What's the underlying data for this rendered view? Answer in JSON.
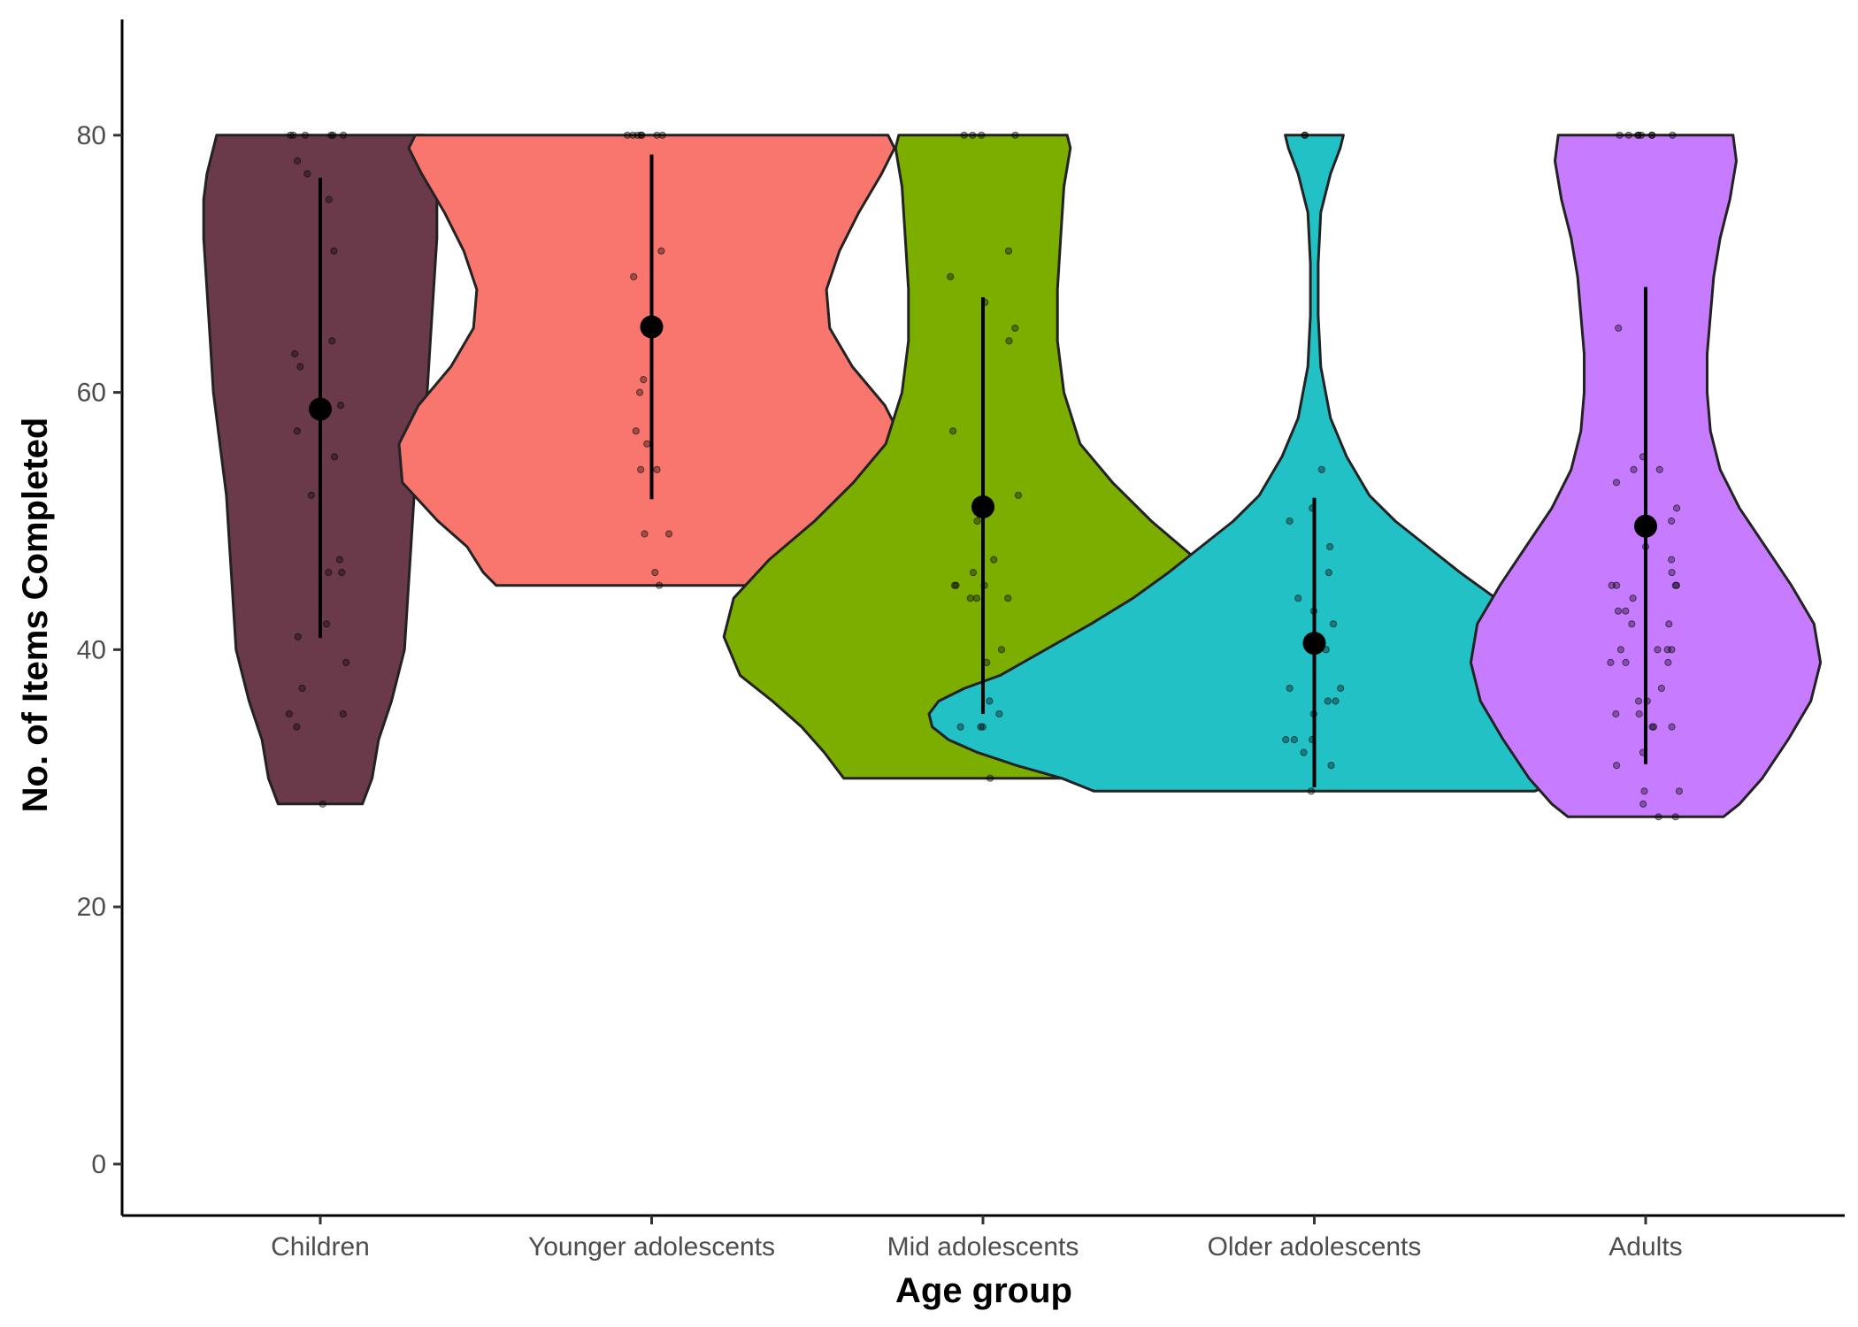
{
  "chart_data": {
    "type": "violin",
    "xlabel": "Age group",
    "ylabel": "No. of Items Completed",
    "ylim": [
      -4,
      89
    ],
    "yticks": [
      0,
      20,
      40,
      60,
      80
    ],
    "grid": false,
    "legend": "none",
    "categories": [
      "Children",
      "Younger adolescents",
      "Mid adolescents",
      "Older adolescents",
      "Adults"
    ],
    "groups": [
      {
        "name": "Children",
        "color": "#6b3a4a",
        "mean": 58.7,
        "interval": [
          40.9,
          76.7
        ],
        "profile": [
          [
            28,
            0.13
          ],
          [
            30,
            0.16
          ],
          [
            33,
            0.18
          ],
          [
            36,
            0.22
          ],
          [
            40,
            0.26
          ],
          [
            44,
            0.27
          ],
          [
            48,
            0.28
          ],
          [
            52,
            0.29
          ],
          [
            56,
            0.31
          ],
          [
            60,
            0.33
          ],
          [
            64,
            0.34
          ],
          [
            68,
            0.35
          ],
          [
            72,
            0.36
          ],
          [
            75,
            0.36
          ],
          [
            77,
            0.35
          ],
          [
            79,
            0.33
          ],
          [
            80,
            0.32
          ]
        ],
        "points": [
          80,
          80,
          80,
          80,
          80,
          80,
          78,
          77,
          75,
          71,
          64,
          63,
          62,
          59,
          57,
          55,
          52,
          47,
          46,
          46,
          42,
          41,
          39,
          37,
          35,
          35,
          34,
          28
        ]
      },
      {
        "name": "Younger adolescents",
        "color": "#f8766d",
        "mean": 65.1,
        "interval": [
          51.7,
          78.5
        ],
        "profile": [
          [
            45,
            0.48
          ],
          [
            46,
            0.52
          ],
          [
            48,
            0.57
          ],
          [
            50,
            0.66
          ],
          [
            53,
            0.77
          ],
          [
            56,
            0.78
          ],
          [
            59,
            0.72
          ],
          [
            62,
            0.62
          ],
          [
            65,
            0.55
          ],
          [
            68,
            0.54
          ],
          [
            71,
            0.58
          ],
          [
            74,
            0.64
          ],
          [
            77,
            0.71
          ],
          [
            79,
            0.75
          ],
          [
            80,
            0.73
          ]
        ],
        "points": [
          80,
          80,
          80,
          80,
          80,
          80,
          80,
          71,
          69,
          61,
          60,
          57,
          56,
          54,
          54,
          49,
          49,
          46,
          45
        ]
      },
      {
        "name": "Mid adolescents",
        "color": "#7cae00",
        "mean": 51.1,
        "interval": [
          35.0,
          67.4
        ],
        "profile": [
          [
            30,
            0.43
          ],
          [
            32,
            0.49
          ],
          [
            34,
            0.56
          ],
          [
            36,
            0.65
          ],
          [
            38,
            0.75
          ],
          [
            41,
            0.8
          ],
          [
            44,
            0.77
          ],
          [
            47,
            0.66
          ],
          [
            50,
            0.52
          ],
          [
            53,
            0.4
          ],
          [
            56,
            0.3
          ],
          [
            60,
            0.25
          ],
          [
            64,
            0.23
          ],
          [
            68,
            0.23
          ],
          [
            72,
            0.24
          ],
          [
            76,
            0.25
          ],
          [
            79,
            0.27
          ],
          [
            80,
            0.26
          ]
        ],
        "points": [
          80,
          80,
          80,
          80,
          71,
          69,
          67,
          65,
          64,
          57,
          52,
          50,
          47,
          46,
          45,
          45,
          45,
          44,
          44,
          44,
          40,
          39,
          36,
          35,
          34,
          34,
          34,
          30
        ]
      },
      {
        "name": "Older adolescents",
        "color": "#22c1c6",
        "mean": 40.5,
        "interval": [
          29.3,
          51.8
        ],
        "profile": [
          [
            29,
            0.68
          ],
          [
            30,
            0.78
          ],
          [
            31,
            0.92
          ],
          [
            32,
            1.04
          ],
          [
            33,
            1.13
          ],
          [
            34,
            1.18
          ],
          [
            35,
            1.19
          ],
          [
            36,
            1.16
          ],
          [
            37,
            1.08
          ],
          [
            38,
            0.97
          ],
          [
            40,
            0.83
          ],
          [
            42,
            0.69
          ],
          [
            44,
            0.56
          ],
          [
            46,
            0.45
          ],
          [
            48,
            0.35
          ],
          [
            50,
            0.25
          ],
          [
            52,
            0.17
          ],
          [
            55,
            0.1
          ],
          [
            58,
            0.05
          ],
          [
            62,
            0.02
          ],
          [
            66,
            0.012
          ],
          [
            70,
            0.012
          ],
          [
            74,
            0.02
          ],
          [
            77,
            0.05
          ],
          [
            79,
            0.08
          ],
          [
            80,
            0.09
          ]
        ],
        "points": [
          80,
          80,
          54,
          51,
          50,
          48,
          46,
          44,
          43,
          42,
          40,
          40,
          37,
          37,
          36,
          36,
          35,
          33,
          33,
          33,
          32,
          31,
          29
        ]
      },
      {
        "name": "Adults",
        "color": "#c77cff",
        "mean": 49.6,
        "interval": [
          31.1,
          68.2
        ],
        "profile": [
          [
            27,
            0.24
          ],
          [
            28,
            0.29
          ],
          [
            30,
            0.36
          ],
          [
            33,
            0.44
          ],
          [
            36,
            0.51
          ],
          [
            39,
            0.54
          ],
          [
            42,
            0.52
          ],
          [
            45,
            0.45
          ],
          [
            48,
            0.37
          ],
          [
            51,
            0.29
          ],
          [
            54,
            0.23
          ],
          [
            57,
            0.2
          ],
          [
            60,
            0.19
          ],
          [
            63,
            0.19
          ],
          [
            66,
            0.2
          ],
          [
            69,
            0.21
          ],
          [
            72,
            0.23
          ],
          [
            75,
            0.26
          ],
          [
            78,
            0.28
          ],
          [
            80,
            0.27
          ]
        ],
        "points": [
          80,
          80,
          80,
          80,
          80,
          80,
          80,
          80,
          65,
          55,
          54,
          54,
          53,
          51,
          50,
          48,
          47,
          46,
          45,
          45,
          45,
          45,
          44,
          43,
          43,
          42,
          42,
          40,
          40,
          40,
          40,
          39,
          39,
          39,
          37,
          36,
          36,
          35,
          35,
          34,
          34,
          34,
          32,
          31,
          29,
          29,
          28,
          27,
          27
        ]
      }
    ]
  }
}
